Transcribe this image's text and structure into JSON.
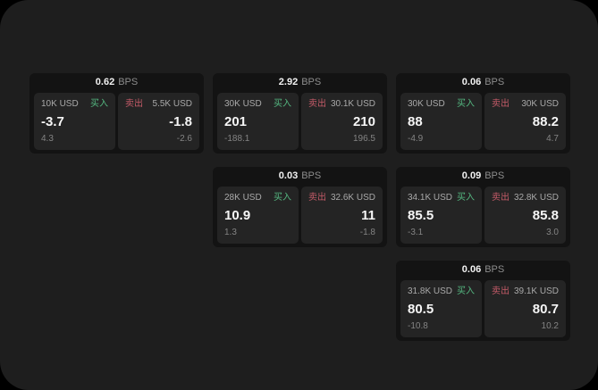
{
  "theme": {
    "outer_bg": "#000000",
    "panel_bg": "#1e1e1e",
    "card_bg": "#131313",
    "tile_bg": "#242424",
    "buy_color": "#55b881",
    "sell_color": "#c45b68",
    "primary_text": "#f6f6f6",
    "muted_text": "#a9a9a9",
    "faint_text": "#848484"
  },
  "labels": {
    "bps_unit": "BPS",
    "buy": "买入",
    "sell": "卖出"
  },
  "cards": [
    {
      "bps": "0.62",
      "col": 1,
      "row": 1,
      "buy": {
        "amount": "10K USD",
        "price": "-3.7",
        "delta": "4.3"
      },
      "sell": {
        "amount": "5.5K USD",
        "price": "-1.8",
        "delta": "-2.6"
      }
    },
    {
      "bps": "2.92",
      "col": 2,
      "row": 1,
      "buy": {
        "amount": "30K USD",
        "price": "201",
        "delta": "-188.1"
      },
      "sell": {
        "amount": "30.1K USD",
        "price": "210",
        "delta": "196.5"
      }
    },
    {
      "bps": "0.06",
      "col": 3,
      "row": 1,
      "buy": {
        "amount": "30K USD",
        "price": "88",
        "delta": "-4.9"
      },
      "sell": {
        "amount": "30K USD",
        "price": "88.2",
        "delta": "4.7"
      }
    },
    {
      "bps": "0.03",
      "col": 2,
      "row": 2,
      "buy": {
        "amount": "28K USD",
        "price": "10.9",
        "delta": "1.3"
      },
      "sell": {
        "amount": "32.6K USD",
        "price": "11",
        "delta": "-1.8"
      }
    },
    {
      "bps": "0.09",
      "col": 3,
      "row": 2,
      "buy": {
        "amount": "34.1K USD",
        "price": "85.5",
        "delta": "-3.1"
      },
      "sell": {
        "amount": "32.8K USD",
        "price": "85.8",
        "delta": "3.0"
      }
    },
    {
      "bps": "0.06",
      "col": 3,
      "row": 3,
      "buy": {
        "amount": "31.8K USD",
        "price": "80.5",
        "delta": "-10.8"
      },
      "sell": {
        "amount": "39.1K USD",
        "price": "80.7",
        "delta": "10.2"
      }
    }
  ]
}
